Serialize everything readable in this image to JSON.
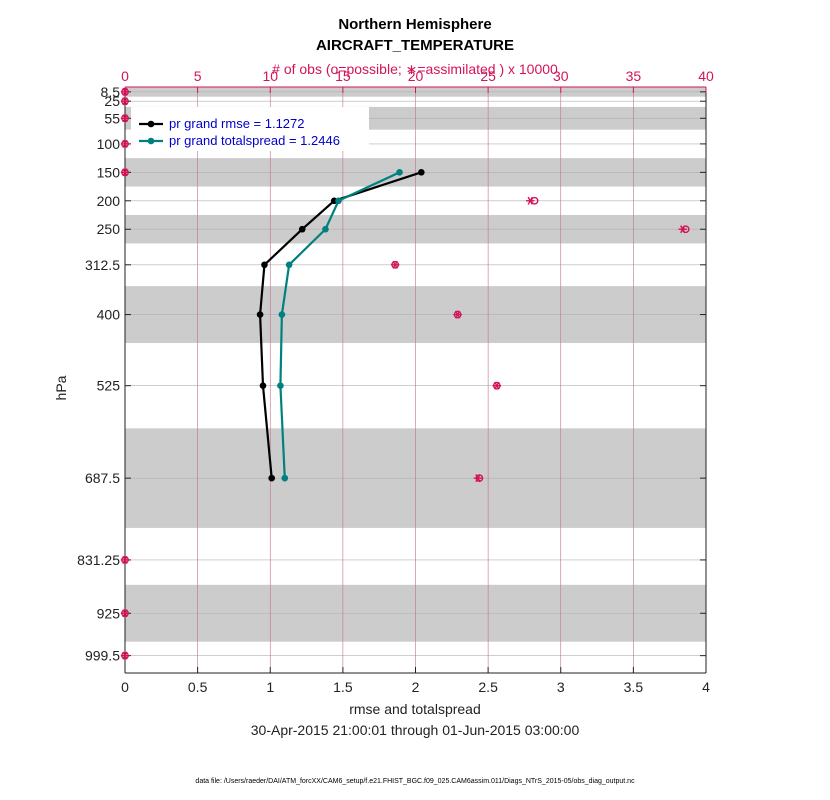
{
  "chart_data": {
    "type": "line",
    "title": "Northern Hemisphere",
    "subtitle": "AIRCRAFT_TEMPERATURE",
    "top_axis_label": "# of obs (o=possible; ∗=assimilated ) x 10000",
    "xlabel": "rmse and totalspread",
    "ylabel": "hPa",
    "date_range": "30-Apr-2015 21:00:01 through 01-Jun-2015 03:00:00",
    "footer": "data file: /Users/raeder/DAI/ATM_forcXX/CAM6_setup/f.e21.FHIST_BGC.f09_025.CAM6assim.011/Diags_NTrS_2015-05/obs_diag_output.nc",
    "xlim": [
      0,
      4
    ],
    "top_xlim": [
      0,
      40
    ],
    "ylim": [
      1030,
      0
    ],
    "x_ticks": [
      "0",
      "0.5",
      "1",
      "1.5",
      "2",
      "2.5",
      "3",
      "3.5",
      "4"
    ],
    "top_ticks": [
      "0",
      "5",
      "10",
      "15",
      "20",
      "25",
      "30",
      "35",
      "40"
    ],
    "y_tick_labels": [
      "8.5",
      "25",
      "55",
      "100",
      "150",
      "200",
      "250",
      "312.5",
      "400",
      "525",
      "687.5",
      "831.25",
      "925",
      "999.5"
    ],
    "levels": [
      8.5,
      25,
      55,
      100,
      150,
      200,
      250,
      312.5,
      400,
      525,
      687.5,
      831.25,
      925,
      999.5
    ],
    "shaded_bands": [
      [
        0,
        17
      ],
      [
        35,
        75
      ],
      [
        125,
        175
      ],
      [
        225,
        275
      ],
      [
        350,
        450
      ],
      [
        600,
        775
      ],
      [
        875,
        975
      ]
    ],
    "series": [
      {
        "name": "pr grand rmse = 1.1272",
        "color": "#000000",
        "levels": [
          150,
          200,
          250,
          312.5,
          400,
          525,
          687.5
        ],
        "values": [
          2.04,
          1.44,
          1.22,
          0.96,
          0.93,
          0.95,
          1.01
        ]
      },
      {
        "name": "pr grand totalspread = 1.2446",
        "color": "#008080",
        "levels": [
          150,
          200,
          250,
          312.5,
          400,
          525,
          687.5
        ],
        "values": [
          1.89,
          1.47,
          1.38,
          1.13,
          1.08,
          1.07,
          1.1
        ]
      }
    ],
    "obs_counts": {
      "color": "#d4145a",
      "levels": [
        8.5,
        25,
        55,
        100,
        150,
        200,
        250,
        312.5,
        400,
        525,
        687.5,
        831.25,
        925,
        999.5
      ],
      "possible": [
        0,
        0,
        0,
        0,
        0,
        28.2,
        38.6,
        18.6,
        22.9,
        25.6,
        24.4,
        0,
        0,
        0
      ],
      "assimilated": [
        0,
        0,
        0,
        0,
        0,
        27.9,
        38.4,
        18.6,
        22.9,
        25.6,
        24.3,
        0,
        0,
        0
      ]
    }
  }
}
